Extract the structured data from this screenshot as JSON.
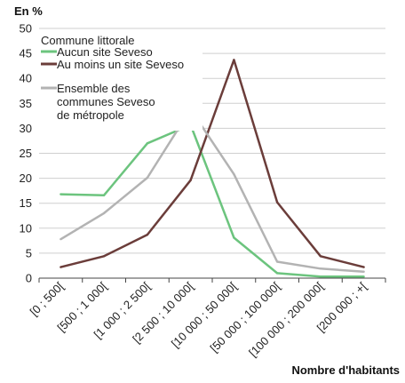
{
  "chart_data": {
    "type": "line",
    "ylabel": "En %",
    "xlabel": "Nombre d'habitants",
    "ylim": [
      0,
      50
    ],
    "yticks": [
      0,
      5,
      10,
      15,
      20,
      25,
      30,
      35,
      40,
      45,
      50
    ],
    "grid": "horizontal",
    "categories": [
      "[0 ; 500[",
      "[500 ; 1 000[",
      "[1 000 ; 2 500[",
      "[2 500 ; 10 000[",
      "[10 000 ; 50 000[",
      "[50 000 ; 100 000[",
      "[100 000 ; 200 000[",
      "[200 000 ; +["
    ],
    "legend_title": "Commune littorale",
    "legend_position": "top-left",
    "series": [
      {
        "name": "Aucun site Seveso",
        "color": "#6cc47e",
        "values": [
          16.8,
          16.6,
          27.0,
          30.7,
          8.1,
          1.0,
          0.3,
          0.3
        ]
      },
      {
        "name": "Au moins un site Seveso",
        "color": "#6b3d3a",
        "values": [
          2.2,
          4.4,
          8.7,
          19.6,
          43.7,
          15.2,
          4.4,
          2.2
        ]
      },
      {
        "name": "Ensemble des communes Seveso de métropole",
        "color": "#b3b3b3",
        "values": [
          7.8,
          13.0,
          20.1,
          33.8,
          20.8,
          3.3,
          1.9,
          1.3
        ]
      }
    ],
    "legend_lines": [
      [
        "Aucun site Seveso"
      ],
      [
        "Au moins un site Seveso"
      ],
      [
        "Ensemble des",
        "communes Seveso",
        "de métropole"
      ]
    ]
  }
}
